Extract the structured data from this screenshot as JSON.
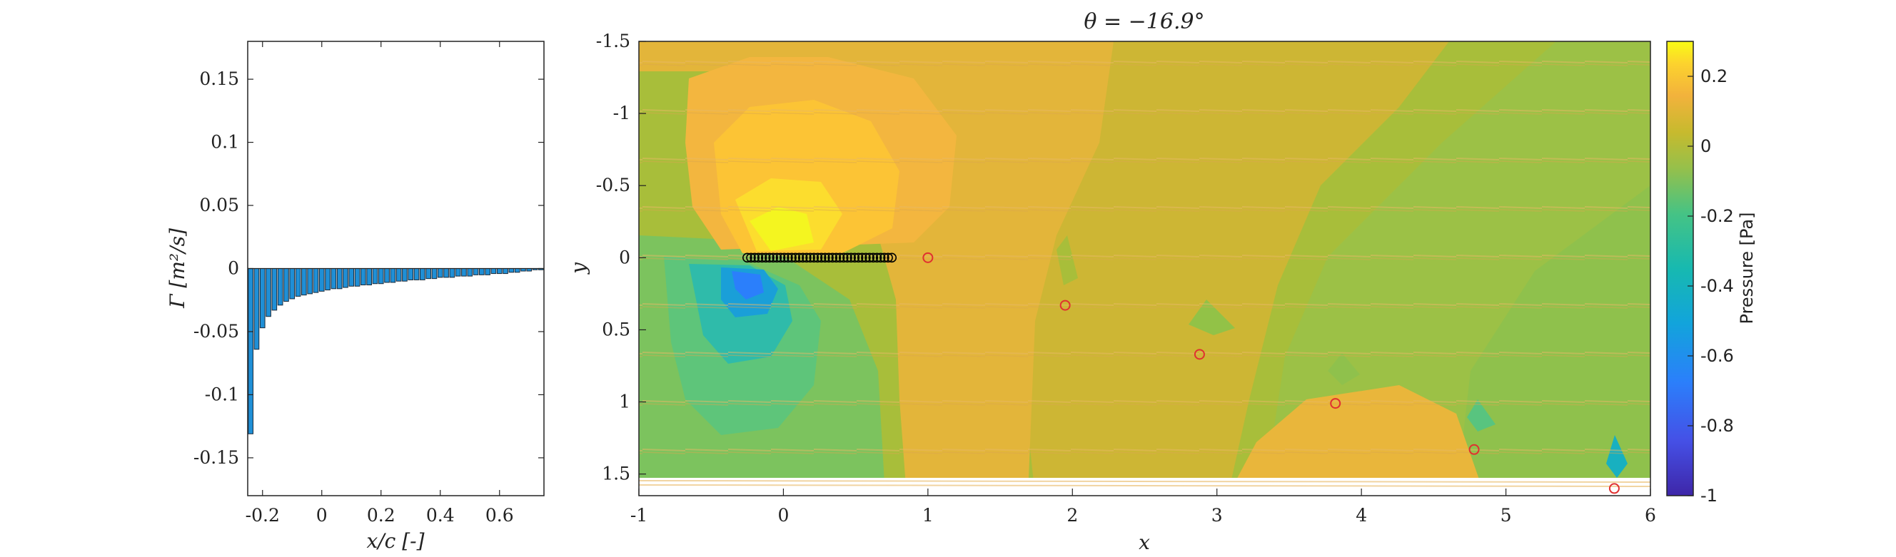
{
  "chart_data": [
    {
      "type": "bar",
      "xlabel": "x/c [-]",
      "ylabel": "Γ [m²/s]",
      "xlim": [
        -0.25,
        0.75
      ],
      "ylim": [
        -0.18,
        0.18
      ],
      "xticks": [
        "-0.2",
        "0",
        "0.2",
        "0.4",
        "0.6"
      ],
      "xtick_values": [
        -0.2,
        0,
        0.2,
        0.4,
        0.6
      ],
      "yticks": [
        "-0.15",
        "-0.1",
        "-0.05",
        "0",
        "0.05",
        "0.1",
        "0.15"
      ],
      "ytick_values": [
        -0.15,
        -0.1,
        -0.05,
        0,
        0.05,
        0.1,
        0.15
      ],
      "bar_color": "#1f8fd6",
      "x": [
        -0.24,
        -0.22,
        -0.2,
        -0.18,
        -0.16,
        -0.14,
        -0.12,
        -0.1,
        -0.08,
        -0.06,
        -0.04,
        -0.02,
        0.0,
        0.02,
        0.04,
        0.06,
        0.08,
        0.1,
        0.12,
        0.14,
        0.16,
        0.18,
        0.2,
        0.22,
        0.24,
        0.26,
        0.28,
        0.3,
        0.32,
        0.34,
        0.36,
        0.38,
        0.4,
        0.42,
        0.44,
        0.46,
        0.48,
        0.5,
        0.52,
        0.54,
        0.56,
        0.58,
        0.6,
        0.62,
        0.64,
        0.66,
        0.68,
        0.7,
        0.72,
        0.74
      ],
      "values": [
        -0.131,
        -0.064,
        -0.047,
        -0.038,
        -0.033,
        -0.029,
        -0.026,
        -0.024,
        -0.022,
        -0.021,
        -0.02,
        -0.019,
        -0.018,
        -0.017,
        -0.016,
        -0.016,
        -0.015,
        -0.014,
        -0.014,
        -0.013,
        -0.013,
        -0.012,
        -0.012,
        -0.011,
        -0.011,
        -0.01,
        -0.01,
        -0.009,
        -0.009,
        -0.009,
        -0.008,
        -0.008,
        -0.007,
        -0.007,
        -0.007,
        -0.006,
        -0.006,
        -0.006,
        -0.005,
        -0.005,
        -0.005,
        -0.004,
        -0.004,
        -0.004,
        -0.003,
        -0.003,
        -0.002,
        -0.002,
        -0.001,
        -0.001
      ]
    },
    {
      "type": "heatmap",
      "title": "θ = −16.9°",
      "xlabel": "x",
      "ylabel": "y",
      "xlim": [
        -1,
        6
      ],
      "ylim": [
        -1.5,
        1.65
      ],
      "y_reversed": true,
      "xticks": [
        "-1",
        "0",
        "1",
        "2",
        "3",
        "4",
        "5",
        "6"
      ],
      "xtick_values": [
        -1,
        0,
        1,
        2,
        3,
        4,
        5,
        6
      ],
      "yticks": [
        "-1.5",
        "-1",
        "-0.5",
        "0",
        "0.5",
        "1",
        "1.5"
      ],
      "ytick_values": [
        -1.5,
        -1,
        -0.5,
        0,
        0.5,
        1,
        1.5
      ],
      "colorbar": {
        "label": "Pressure [Pa]",
        "range": [
          -1,
          0.3
        ],
        "ticks": [
          "-1",
          "-0.8",
          "-0.6",
          "-0.4",
          "-0.2",
          "0",
          "0.2"
        ],
        "tick_values": [
          -1,
          -0.8,
          -0.6,
          -0.4,
          -0.2,
          0,
          0.2
        ],
        "colormap": "parula"
      },
      "plate": {
        "x_start": -0.25,
        "x_end": 0.75,
        "y": 0,
        "marker_color": "#000000"
      },
      "wake_points": {
        "marker_color": "#e03030",
        "x": [
          1.0,
          1.95,
          2.88,
          3.82,
          4.78,
          5.75
        ],
        "y": [
          0.0,
          0.33,
          0.67,
          1.01,
          1.33,
          1.6
        ]
      }
    }
  ]
}
